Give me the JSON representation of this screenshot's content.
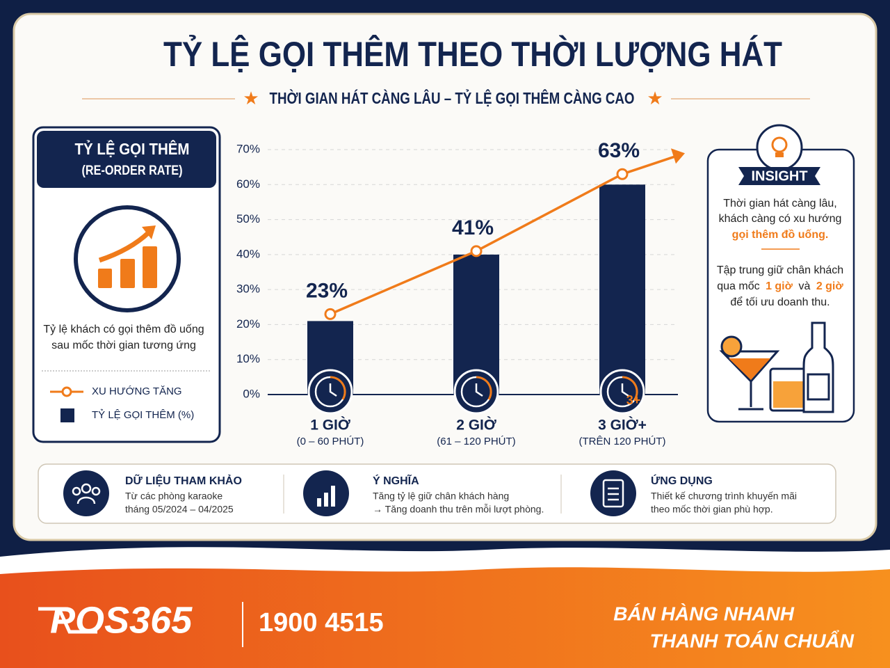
{
  "header": {
    "title": "TỶ LỆ GỌI THÊM THEO THỜI LƯỢNG HÁT",
    "subtitle": "THỜI GIAN HÁT CÀNG LÂU – TỶ LỆ GỌI THÊM CÀNG CAO"
  },
  "left_panel": {
    "title": "TỶ LỆ GỌI THÊM",
    "subtitle": "(RE-ORDER RATE)",
    "description": [
      "Tỷ lệ khách có gọi thêm đồ uống",
      "sau mốc thời gian tương ứng"
    ]
  },
  "chart_data": {
    "type": "bar",
    "categories": [
      "1 GIỜ",
      "2 GIỜ",
      "3 GIỜ+"
    ],
    "category_notes": [
      "(0 – 60 PHÚT)",
      "(61 – 120 PHÚT)",
      "(TRÊN 120 PHÚT)"
    ],
    "series": [
      {
        "name": "TỶ LỆ GỌI THÊM (%)",
        "type": "bar",
        "color": "#13254f",
        "values": [
          21,
          40,
          60
        ]
      },
      {
        "name": "XU HƯỚNG TĂNG",
        "type": "line",
        "color": "#f07b1a",
        "values": [
          23,
          41,
          63
        ],
        "value_labels": [
          "23%",
          "41%",
          "63%"
        ]
      }
    ],
    "ylim": [
      0,
      70
    ],
    "yticks": [
      {
        "value": 0,
        "label": "0%"
      },
      {
        "value": 10,
        "label": "10%"
      },
      {
        "value": 20,
        "label": "20%"
      },
      {
        "value": 30,
        "label": "30%"
      },
      {
        "value": 40,
        "label": "40%"
      },
      {
        "value": 50,
        "label": "50%"
      },
      {
        "value": 60,
        "label": "60%"
      },
      {
        "value": 70,
        "label": "70%"
      }
    ],
    "grid": true
  },
  "clock_badge": "3+",
  "insight": {
    "title": "INSIGHT",
    "text1": [
      "Thời gian hát càng lâu,",
      "khách càng có xu hướng",
      "gọi thêm đồ uống."
    ],
    "text2_line1": "Tập trung giữ chân khách",
    "text2_line2": [
      "qua mốc",
      "1 giờ",
      "và",
      "2 giờ"
    ],
    "text2_line3": "để tối ưu doanh thu."
  },
  "cards": [
    {
      "title": "DỮ LIỆU THAM KHẢO",
      "lines": [
        "Từ các phòng karaoke",
        "tháng 05/2024 – 04/2025"
      ]
    },
    {
      "title": "Ý NGHĨA",
      "lines": [
        "Tăng tỷ lệ giữ chân khách hàng",
        "→ Tăng doanh thu trên mỗi lượt phòng."
      ]
    },
    {
      "title": "ỨNG DỤNG",
      "lines": [
        "Thiết kế chương trình khuyến mãi",
        "theo mốc thời gian phù hợp."
      ]
    }
  ],
  "footer": {
    "brand": "POS365",
    "phone": "1900 4515",
    "slogan": [
      "BÁN HÀNG NHANH",
      "THANH TOÁN CHUẨN"
    ]
  }
}
